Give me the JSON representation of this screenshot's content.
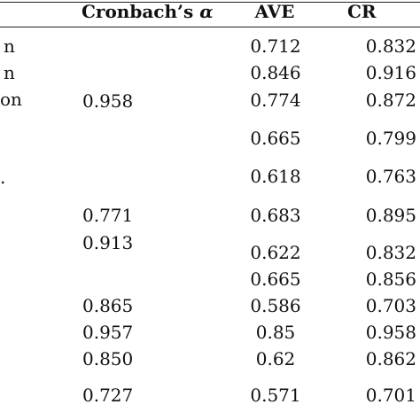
{
  "table": {
    "headers": {
      "cronbach_prefix": "Cronbach’s",
      "cronbach_symbol": "α",
      "ave": "AVE",
      "cr": "CR"
    },
    "left_fragments": [
      "n",
      "n",
      "on",
      "",
      "."
    ],
    "rows": [
      {
        "alpha": "",
        "ave": "0.712",
        "cr": "0.832"
      },
      {
        "alpha": "",
        "ave": "0.846",
        "cr": "0.916"
      },
      {
        "alpha": "0.958",
        "ave": "0.774",
        "cr": "0.872"
      },
      {
        "alpha": "",
        "ave": "0.665",
        "cr": "0.799"
      },
      {
        "alpha": "",
        "ave": "0.618",
        "cr": "0.763"
      },
      {
        "alpha": "0.771",
        "ave": "0.683",
        "cr": "0.895"
      },
      {
        "alpha": "0.913",
        "ave": "0.622",
        "cr": "0.832"
      },
      {
        "alpha": "",
        "ave": "0.665",
        "cr": "0.856"
      },
      {
        "alpha": "0.865",
        "ave": "0.586",
        "cr": "0.703"
      },
      {
        "alpha": "0.957",
        "ave": "0.85",
        "cr": "0.958"
      },
      {
        "alpha": "0.850",
        "ave": "0.62",
        "cr": "0.862"
      },
      {
        "alpha": "0.727",
        "ave": "0.571",
        "cr": "0.701"
      }
    ]
  }
}
